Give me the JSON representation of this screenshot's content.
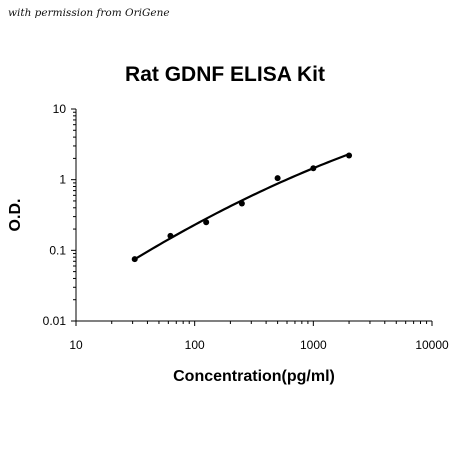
{
  "watermark": "with permission from OriGene",
  "chart_data": {
    "type": "scatter",
    "title": "Rat GDNF ELISA Kit",
    "xlabel": "Concentration(pg/ml)",
    "ylabel": "O.D.",
    "x_scale": "log",
    "y_scale": "log",
    "xlim": [
      10,
      10000
    ],
    "ylim": [
      0.01,
      10
    ],
    "x_ticks": [
      "10",
      "100",
      "1000",
      "10000"
    ],
    "y_ticks": [
      "0.01",
      "0.1",
      "1",
      "10"
    ],
    "grid": false,
    "legend": false,
    "series": [
      {
        "x": [
          31.25,
          62.5,
          125,
          250,
          500,
          1000,
          2000
        ],
        "y": [
          0.075,
          0.16,
          0.25,
          0.46,
          1.05,
          1.45,
          2.2
        ],
        "marker": "circle",
        "fit_line": true,
        "color": "#000000"
      }
    ]
  }
}
